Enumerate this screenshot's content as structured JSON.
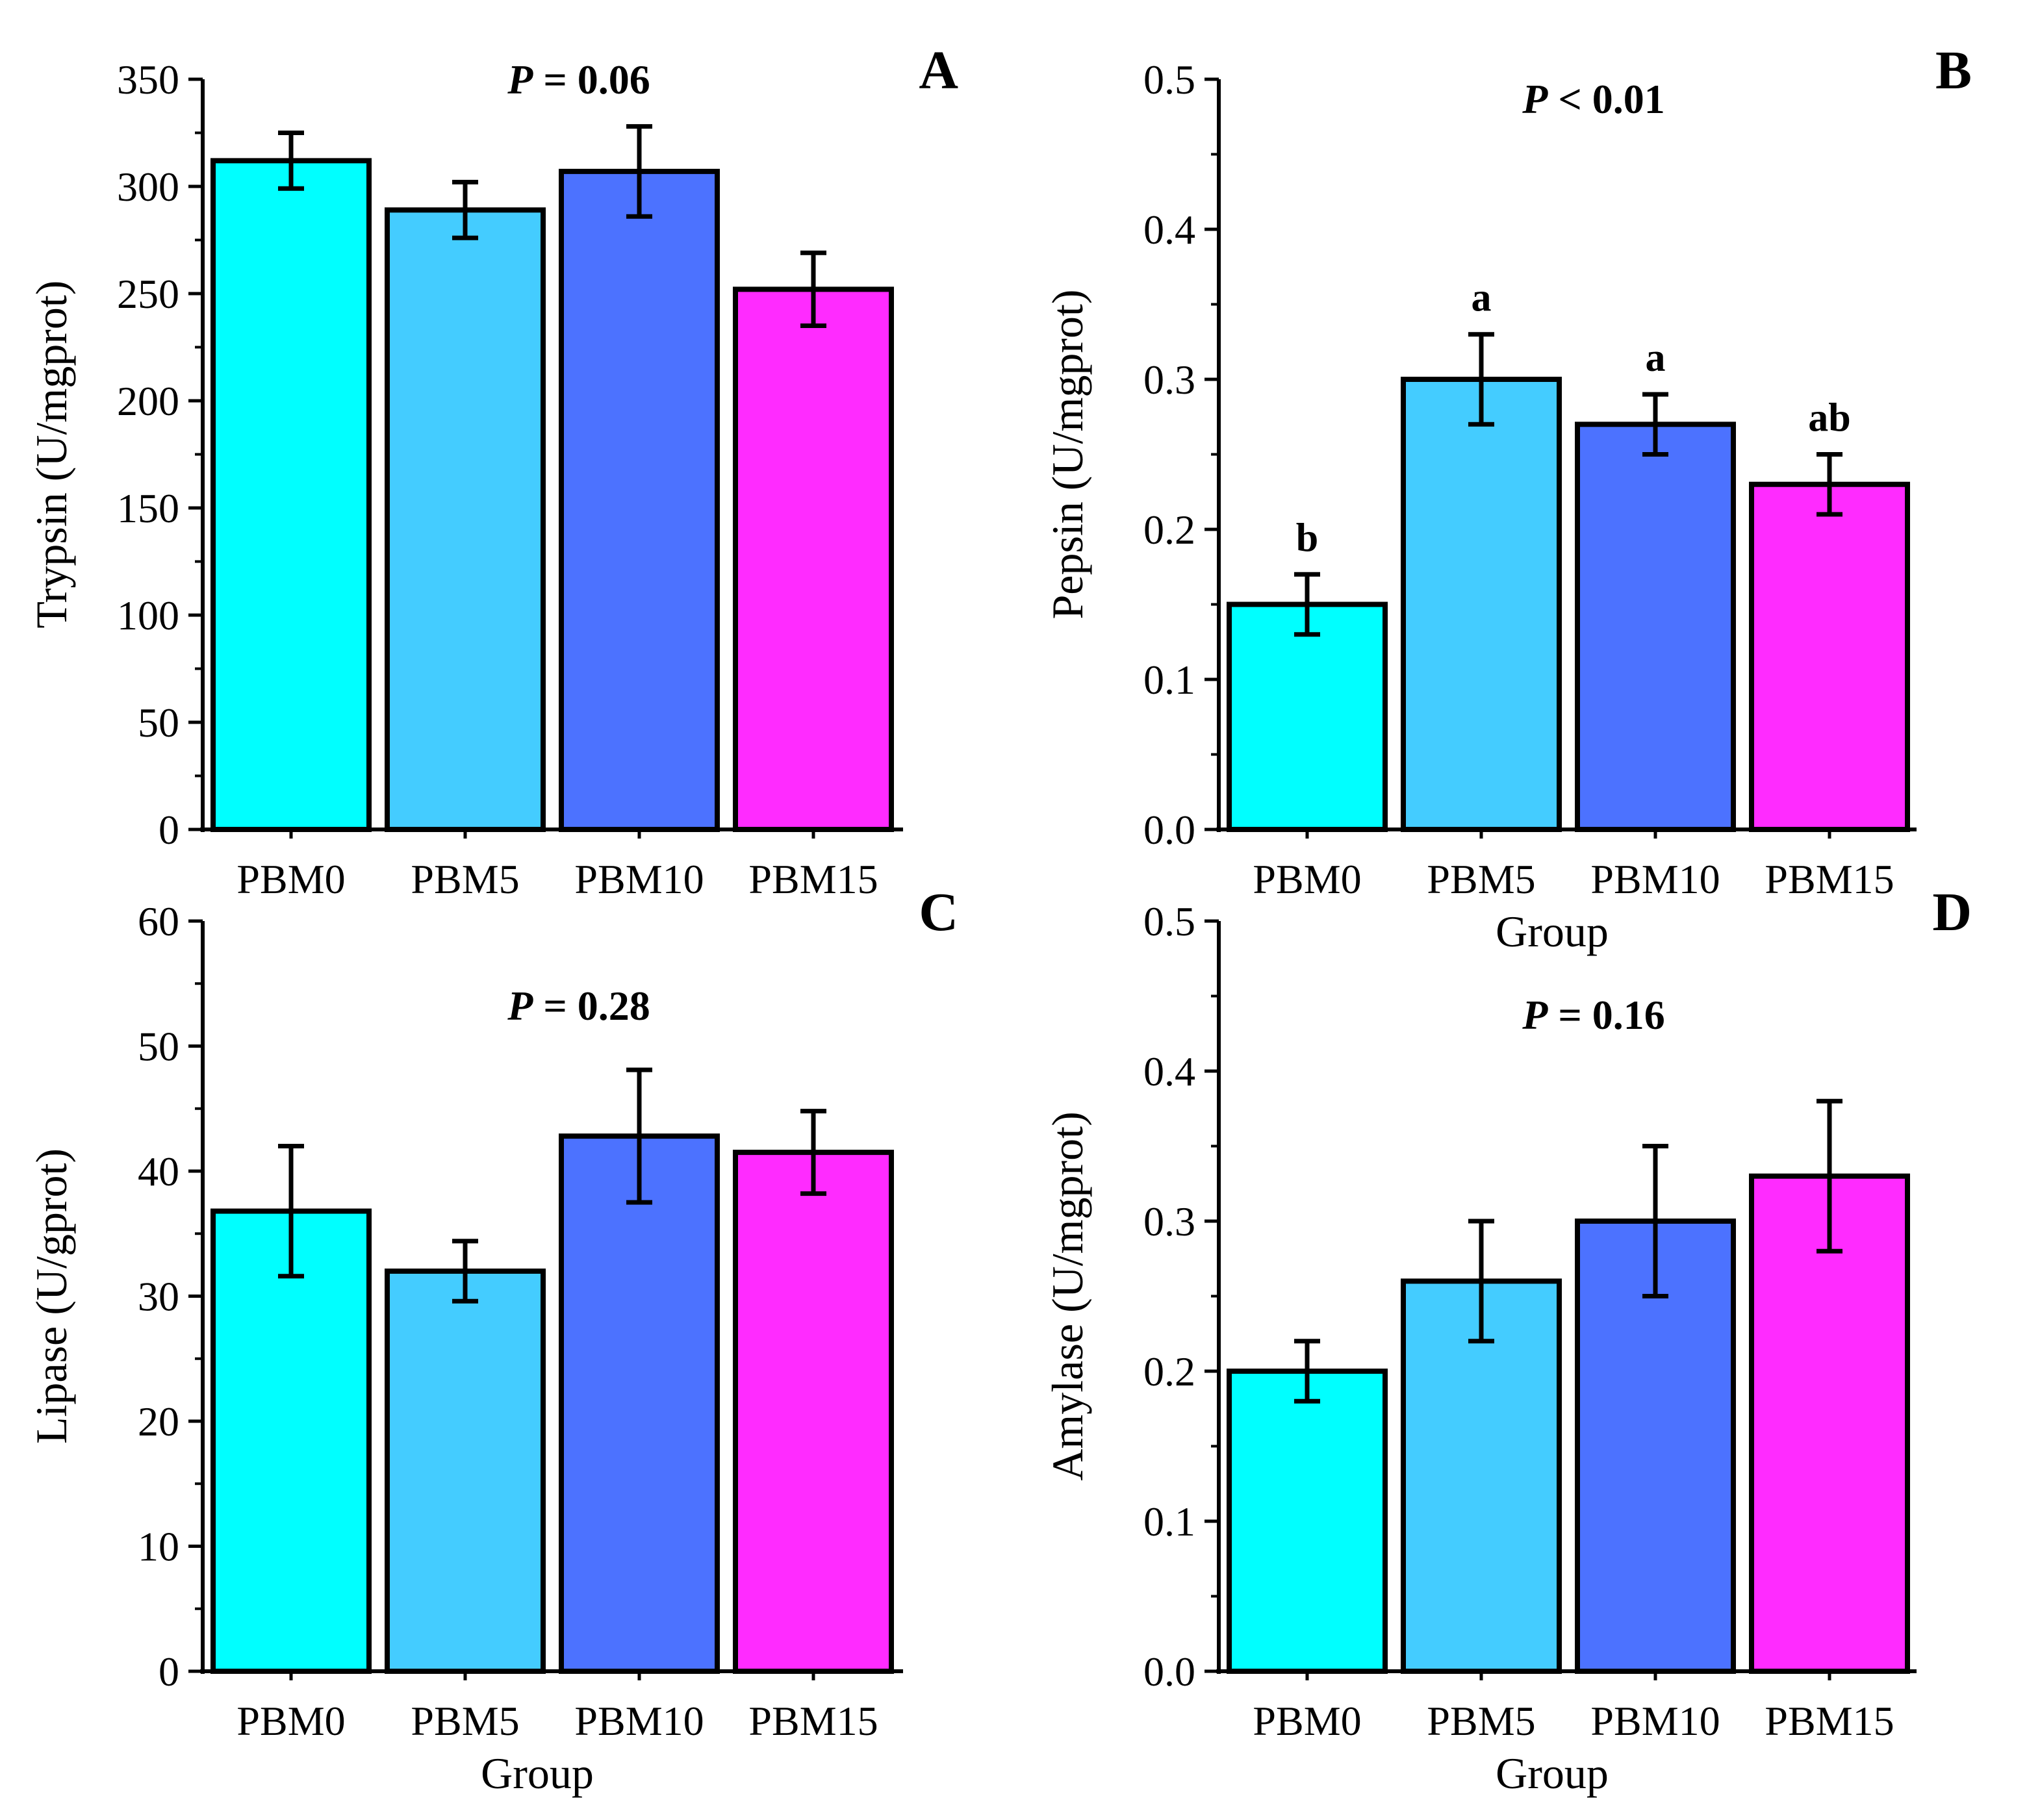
{
  "colors": {
    "PBM0": "#00FFFF",
    "PBM5": "#44CCFF",
    "PBM10": "#4C72FF",
    "PBM15": "#FF2BFF",
    "axis": "#000000"
  },
  "chart_data": [
    {
      "type": "bar",
      "panel_label": "A",
      "annotation": "P = 0.06",
      "annotation_prefix": "P",
      "annotation_rest": " = 0.06",
      "categories": [
        "PBM0",
        "PBM5",
        "PBM10",
        "PBM15"
      ],
      "values": [
        312,
        289,
        307,
        252
      ],
      "errors": [
        13,
        13,
        21,
        17
      ],
      "letters": [],
      "ylabel": "Trypsin (U/mgprot)",
      "xlabel": "",
      "ylim": [
        0,
        350
      ],
      "yticks": [
        0,
        50,
        100,
        150,
        200,
        250,
        300,
        350
      ],
      "ytick_labels": [
        "0",
        "50",
        "100",
        "150",
        "200",
        "250",
        "300",
        "350"
      ]
    },
    {
      "type": "bar",
      "panel_label": "B",
      "annotation": "P < 0.01",
      "annotation_prefix": "P",
      "annotation_rest": " < 0.01",
      "categories": [
        "PBM0",
        "PBM5",
        "PBM10",
        "PBM15"
      ],
      "values": [
        0.15,
        0.3,
        0.27,
        0.23
      ],
      "errors": [
        0.02,
        0.03,
        0.02,
        0.02
      ],
      "letters": [
        "b",
        "a",
        "a",
        "ab"
      ],
      "ylabel": "Pepsin (U/mgprot)",
      "xlabel": "Group",
      "ylim": [
        0,
        0.5
      ],
      "yticks": [
        0,
        0.1,
        0.2,
        0.3,
        0.4,
        0.5
      ],
      "ytick_labels": [
        "0.0",
        "0.1",
        "0.2",
        "0.3",
        "0.4",
        "0.5"
      ]
    },
    {
      "type": "bar",
      "panel_label": "C",
      "annotation": "P = 0.28",
      "annotation_prefix": "P",
      "annotation_rest": " = 0.28",
      "categories": [
        "PBM0",
        "PBM5",
        "PBM10",
        "PBM15"
      ],
      "values": [
        36.8,
        32.0,
        42.8,
        41.5
      ],
      "errors": [
        5.2,
        2.4,
        5.3,
        3.3
      ],
      "letters": [],
      "ylabel": "Lipase (U/gprot)",
      "xlabel": "Group",
      "ylim": [
        0,
        60
      ],
      "yticks": [
        0,
        10,
        20,
        30,
        40,
        50,
        60
      ],
      "ytick_labels": [
        "0",
        "10",
        "20",
        "30",
        "40",
        "50",
        "60"
      ]
    },
    {
      "type": "bar",
      "panel_label": "D",
      "annotation": "P = 0.16",
      "annotation_prefix": "P",
      "annotation_rest": " = 0.16",
      "categories": [
        "PBM0",
        "PBM5",
        "PBM10",
        "PBM15"
      ],
      "values": [
        0.2,
        0.26,
        0.3,
        0.33
      ],
      "errors": [
        0.02,
        0.04,
        0.05,
        0.05
      ],
      "letters": [],
      "ylabel": "Amylase (U/mgprot)",
      "xlabel": "Group",
      "ylim": [
        0,
        0.5
      ],
      "yticks": [
        0,
        0.1,
        0.2,
        0.3,
        0.4,
        0.5
      ],
      "ytick_labels": [
        "0.0",
        "0.1",
        "0.2",
        "0.3",
        "0.4",
        "0.5"
      ]
    }
  ]
}
